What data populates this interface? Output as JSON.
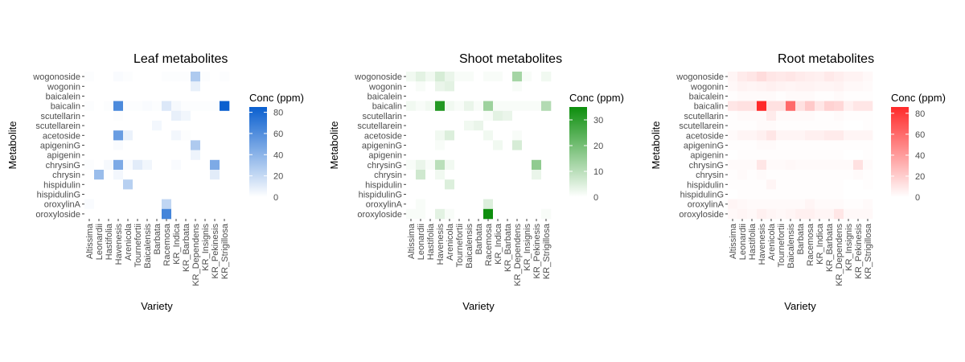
{
  "chart_data": [
    {
      "type": "heatmap",
      "title": "Leaf metabolites",
      "xlabel": "Variety",
      "ylabel": "Metabolite",
      "legend_title": "Conc (ppm)",
      "legend_ticks": [
        0,
        20,
        40,
        60,
        80
      ],
      "scale_max": 85,
      "low_color": "#ffffff",
      "high_color": "#0a5fcf",
      "varieties": [
        "Altissima",
        "Leonardii",
        "Hastifolia",
        "Havenesis",
        "Arenicola",
        "Tournefortii",
        "Baicalensis",
        "Barbata",
        "Racemosa",
        "KR_Indica",
        "KR_Barbata",
        "KR_Dependens",
        "KR_Insignis",
        "KR_Pekinesis",
        "KR_Strigillosa"
      ],
      "metabolites": [
        "wogonoside",
        "wogonin",
        "baicalein",
        "baicalin",
        "scutellarin",
        "scutellarein",
        "acetoside",
        "apigeninG",
        "apigenin",
        "chrysinG",
        "chrysin",
        "hispidulin",
        "hispidulinG",
        "oroxylinA",
        "oroxyloside"
      ],
      "values": [
        [
          1,
          0,
          0,
          2,
          1,
          0,
          0,
          0,
          1,
          1,
          1,
          28,
          1,
          0,
          1
        ],
        [
          0,
          0,
          0,
          0,
          0,
          0,
          0,
          0,
          0,
          0,
          0,
          8,
          0,
          0,
          0
        ],
        [
          0,
          0,
          0,
          0,
          0,
          0,
          0,
          0,
          0,
          0,
          0,
          0,
          0,
          0,
          0
        ],
        [
          1,
          0,
          1,
          62,
          1,
          1,
          2,
          1,
          12,
          3,
          1,
          1,
          1,
          1,
          85
        ],
        [
          0,
          0,
          0,
          1,
          0,
          0,
          0,
          0,
          0,
          8,
          5,
          0,
          0,
          0,
          0
        ],
        [
          0,
          0,
          0,
          0,
          0,
          0,
          0,
          4,
          0,
          0,
          0,
          0,
          0,
          0,
          0
        ],
        [
          0,
          0,
          0,
          52,
          7,
          0,
          0,
          0,
          0,
          4,
          1,
          0,
          0,
          0,
          0
        ],
        [
          0,
          0,
          0,
          2,
          0,
          0,
          0,
          0,
          0,
          0,
          0,
          28,
          0,
          0,
          0
        ],
        [
          0,
          0,
          0,
          0,
          0,
          0,
          0,
          0,
          0,
          0,
          0,
          6,
          0,
          0,
          0
        ],
        [
          1,
          0,
          3,
          45,
          2,
          10,
          5,
          0,
          0,
          2,
          0,
          0,
          0,
          45,
          0
        ],
        [
          0,
          35,
          0,
          4,
          0,
          0,
          0,
          0,
          0,
          0,
          0,
          0,
          0,
          10,
          0
        ],
        [
          0,
          0,
          0,
          0,
          25,
          0,
          0,
          0,
          0,
          0,
          0,
          0,
          0,
          0,
          0
        ],
        [
          0,
          0,
          0,
          0,
          0,
          0,
          0,
          0,
          0,
          0,
          0,
          0,
          0,
          0,
          0
        ],
        [
          2,
          0,
          0,
          0,
          0,
          0,
          0,
          0,
          22,
          0,
          0,
          0,
          0,
          0,
          0
        ],
        [
          0,
          0,
          0,
          0,
          0,
          0,
          0,
          0,
          65,
          0,
          0,
          0,
          0,
          0,
          0
        ]
      ]
    },
    {
      "type": "heatmap",
      "title": "Shoot metabolites",
      "xlabel": "Variety",
      "ylabel": "Metabolite",
      "legend_title": "Conc (ppm)",
      "legend_ticks": [
        0,
        10,
        20,
        30
      ],
      "scale_max": 35,
      "low_color": "#ffffff",
      "high_color": "#0d8e0d",
      "varieties": [
        "Altissima",
        "Leonardii",
        "Hastifolia",
        "Havenesis",
        "Arenicola",
        "Tournefortii",
        "Baicalensis",
        "Barbata",
        "Racemosa",
        "KR_Indica",
        "KR_Barbata",
        "KR_Dependens",
        "KR_Insignis",
        "KR_Pekinesis",
        "KR_Strigillosa"
      ],
      "metabolites": [
        "wogonoside",
        "wogonin",
        "baicalein",
        "baicalin",
        "scutellarin",
        "scutellarein",
        "acetoside",
        "apigeninG",
        "apigenin",
        "chrysinG",
        "chrysin",
        "hispidulin",
        "hispidulinG",
        "oroxylinA",
        "oroxyloside"
      ],
      "values": [
        [
          2,
          4,
          2,
          6,
          3,
          1,
          1,
          0,
          1,
          1,
          0,
          13,
          1,
          0,
          2
        ],
        [
          0,
          1,
          0,
          3,
          4,
          0,
          0,
          0,
          0,
          0,
          0,
          1,
          0,
          0,
          0
        ],
        [
          0,
          0,
          0,
          0,
          0,
          0,
          0,
          0,
          0,
          0,
          0,
          0,
          0,
          0,
          0
        ],
        [
          2,
          1,
          2,
          32,
          2,
          1,
          3,
          1,
          14,
          1,
          1,
          1,
          1,
          1,
          11
        ],
        [
          0,
          0,
          0,
          0,
          0,
          0,
          0,
          0,
          1,
          4,
          3,
          0,
          0,
          0,
          0
        ],
        [
          0,
          0,
          0,
          0,
          0,
          0,
          2,
          3,
          0,
          0,
          0,
          0,
          0,
          0,
          0
        ],
        [
          0,
          0,
          0,
          2,
          5,
          0,
          0,
          0,
          2,
          0,
          0,
          1,
          0,
          0,
          0
        ],
        [
          0,
          0,
          0,
          1,
          0,
          0,
          0,
          0,
          0,
          2,
          0,
          6,
          0,
          0,
          0
        ],
        [
          0,
          0,
          0,
          0,
          0,
          0,
          0,
          0,
          0,
          0,
          0,
          0,
          0,
          0,
          0
        ],
        [
          1,
          3,
          1,
          10,
          2,
          0,
          0,
          0,
          0,
          0,
          0,
          0,
          0,
          16,
          0
        ],
        [
          0,
          7,
          0,
          2,
          0,
          0,
          0,
          0,
          0,
          0,
          0,
          0,
          0,
          3,
          0
        ],
        [
          0,
          0,
          0,
          0,
          5,
          0,
          0,
          0,
          0,
          0,
          0,
          0,
          0,
          0,
          0
        ],
        [
          0,
          0,
          0,
          0,
          0,
          0,
          0,
          0,
          0,
          0,
          0,
          0,
          0,
          0,
          0
        ],
        [
          0,
          1,
          0,
          0,
          0,
          0,
          0,
          0,
          5,
          0,
          0,
          0,
          0,
          0,
          0
        ],
        [
          1,
          1,
          0,
          4,
          1,
          0,
          0,
          0,
          35,
          0,
          0,
          0,
          0,
          0,
          1
        ]
      ]
    },
    {
      "type": "heatmap",
      "title": "Root metabolites",
      "xlabel": "Variety",
      "ylabel": "Metabolite",
      "legend_title": "Conc (ppm)",
      "legend_ticks": [
        0,
        20,
        40,
        60,
        80
      ],
      "scale_max": 86,
      "low_color": "#ffffff",
      "high_color": "#ff2a2a",
      "varieties": [
        "Altissima",
        "Leonardii",
        "Hastifolia",
        "Havenesis",
        "Arenicola",
        "Tournefortii",
        "Baicalensis",
        "Barbata",
        "Racemosa",
        "KR_Indica",
        "KR_Barbata",
        "KR_Dependens",
        "KR_Insignis",
        "KR_Pekinesis",
        "KR_Strigillosa"
      ],
      "metabolites": [
        "wogonoside",
        "wogonin",
        "baicalein",
        "baicalin",
        "scutellarin",
        "scutellarein",
        "acetoside",
        "apigeninG",
        "apigenin",
        "chrysinG",
        "chrysin",
        "hispidulin",
        "hispidulinG",
        "oroxylinA",
        "oroxyloside"
      ],
      "values": [
        [
          4,
          8,
          10,
          14,
          10,
          9,
          10,
          8,
          7,
          6,
          9,
          7,
          5,
          5,
          3
        ],
        [
          3,
          5,
          4,
          5,
          6,
          5,
          4,
          5,
          5,
          4,
          4,
          5,
          3,
          3,
          2
        ],
        [
          1,
          2,
          2,
          2,
          2,
          1,
          2,
          2,
          2,
          1,
          1,
          2,
          1,
          1,
          1
        ],
        [
          10,
          12,
          12,
          86,
          12,
          12,
          60,
          12,
          22,
          10,
          18,
          16,
          6,
          10,
          10
        ],
        [
          1,
          2,
          2,
          2,
          8,
          2,
          2,
          2,
          2,
          1,
          1,
          2,
          1,
          1,
          1
        ],
        [
          1,
          1,
          1,
          2,
          2,
          1,
          1,
          1,
          1,
          1,
          1,
          1,
          0,
          0,
          1
        ],
        [
          2,
          4,
          4,
          6,
          10,
          4,
          4,
          4,
          6,
          6,
          8,
          8,
          4,
          4,
          4
        ],
        [
          1,
          1,
          1,
          2,
          2,
          1,
          1,
          1,
          1,
          1,
          1,
          1,
          1,
          1,
          1
        ],
        [
          0,
          1,
          1,
          1,
          1,
          1,
          1,
          1,
          1,
          1,
          1,
          1,
          0,
          0,
          1
        ],
        [
          2,
          2,
          2,
          10,
          2,
          2,
          3,
          2,
          2,
          2,
          2,
          2,
          2,
          12,
          2
        ],
        [
          1,
          2,
          1,
          2,
          1,
          1,
          1,
          1,
          1,
          1,
          1,
          1,
          1,
          2,
          1
        ],
        [
          1,
          1,
          1,
          1,
          4,
          1,
          1,
          1,
          1,
          1,
          1,
          1,
          0,
          0,
          1
        ],
        [
          0,
          1,
          1,
          1,
          1,
          1,
          1,
          1,
          1,
          1,
          1,
          1,
          0,
          0,
          0
        ],
        [
          4,
          3,
          2,
          2,
          2,
          2,
          2,
          2,
          4,
          2,
          2,
          2,
          1,
          1,
          2
        ],
        [
          3,
          4,
          3,
          6,
          4,
          3,
          4,
          6,
          6,
          4,
          4,
          10,
          3,
          3,
          3
        ]
      ]
    }
  ]
}
